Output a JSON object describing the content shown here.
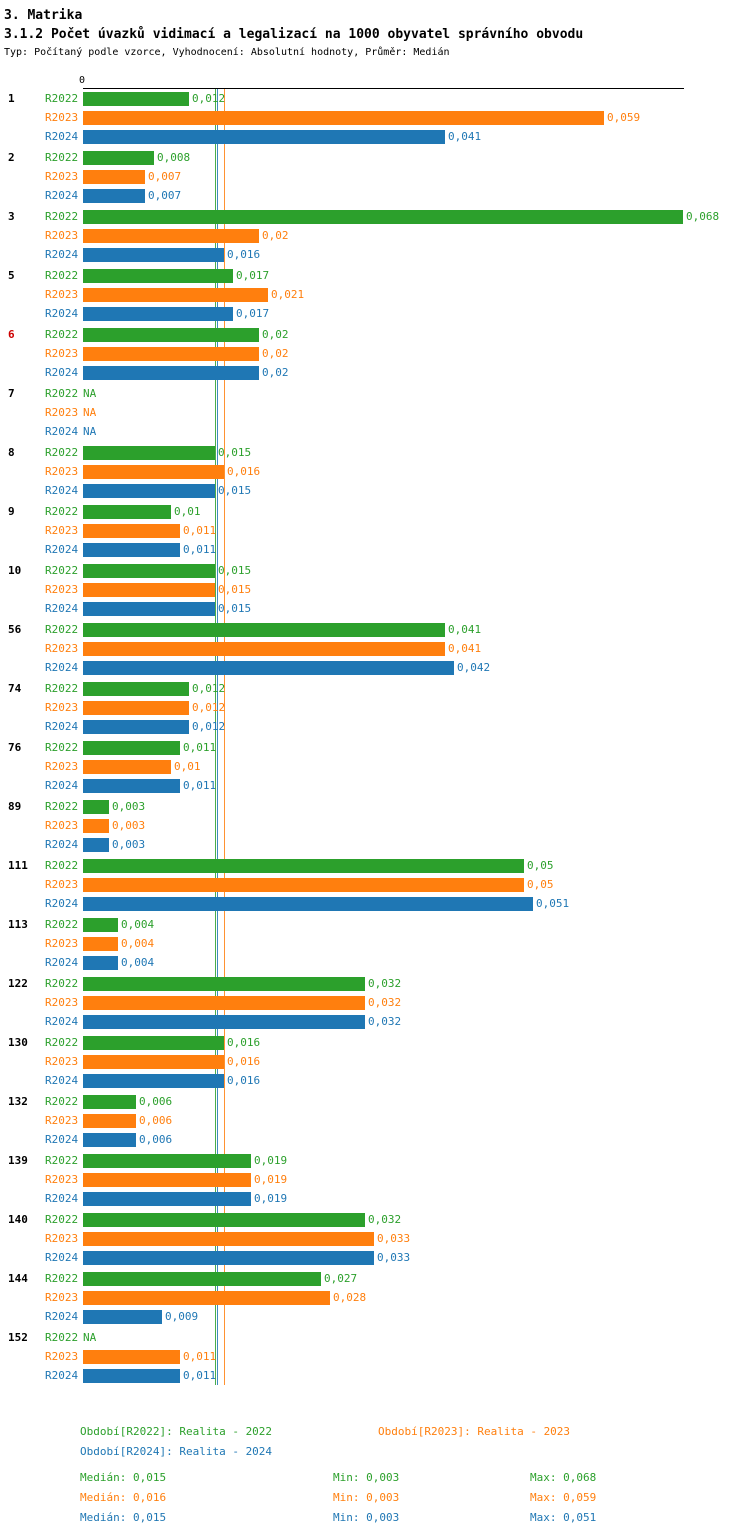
{
  "header": {
    "title": "3. Matrika",
    "subtitle": "3.1.2 Počet úvazků vidimací a legalizací na 1000 obyvatel správního obvodu",
    "meta": "Typ: Počítaný podle vzorce, Vyhodnocení: Absolutní hodnoty, Průměr: Medián"
  },
  "chart_data": {
    "type": "bar",
    "orientation": "horizontal",
    "title": "3.1.2 Počet úvazků vidimací a legalizací na 1000 obyvatel správního obvodu",
    "xlabel": "",
    "ylabel": "",
    "xlim": [
      0,
      0.068
    ],
    "zero_tick_label": "0",
    "categories": [
      "1",
      "2",
      "3",
      "5",
      "6",
      "7",
      "8",
      "9",
      "10",
      "56",
      "74",
      "76",
      "89",
      "111",
      "113",
      "122",
      "130",
      "132",
      "139",
      "140",
      "144",
      "152"
    ],
    "highlighted_category": "6",
    "highlight_color": "#cc0000",
    "na_label": "NA",
    "series": [
      {
        "name": "R2022",
        "color": "#2ca02c",
        "values": [
          0.012,
          0.008,
          0.068,
          0.017,
          0.02,
          null,
          0.015,
          0.01,
          0.015,
          0.041,
          0.012,
          0.011,
          0.003,
          0.05,
          0.004,
          0.032,
          0.016,
          0.006,
          0.019,
          0.032,
          0.027,
          null
        ],
        "labels": [
          "0,012",
          "0,008",
          "0,068",
          "0,017",
          "0,02",
          "NA",
          "0,015",
          "0,01",
          "0,015",
          "0,041",
          "0,012",
          "0,011",
          "0,003",
          "0,05",
          "0,004",
          "0,032",
          "0,016",
          "0,006",
          "0,019",
          "0,032",
          "0,027",
          "NA"
        ]
      },
      {
        "name": "R2023",
        "color": "#ff7f0e",
        "values": [
          0.059,
          0.007,
          0.02,
          0.021,
          0.02,
          null,
          0.016,
          0.011,
          0.015,
          0.041,
          0.012,
          0.01,
          0.003,
          0.05,
          0.004,
          0.032,
          0.016,
          0.006,
          0.019,
          0.033,
          0.028,
          0.011
        ],
        "labels": [
          "0,059",
          "0,007",
          "0,02",
          "0,021",
          "0,02",
          "NA",
          "0,016",
          "0,011",
          "0,015",
          "0,041",
          "0,012",
          "0,01",
          "0,003",
          "0,05",
          "0,004",
          "0,032",
          "0,016",
          "0,006",
          "0,019",
          "0,033",
          "0,028",
          "0,011"
        ]
      },
      {
        "name": "R2024",
        "color": "#1f77b4",
        "values": [
          0.041,
          0.007,
          0.016,
          0.017,
          0.02,
          null,
          0.015,
          0.011,
          0.015,
          0.042,
          0.012,
          0.011,
          0.003,
          0.051,
          0.004,
          0.032,
          0.016,
          0.006,
          0.019,
          0.033,
          0.009,
          0.011
        ],
        "labels": [
          "0,041",
          "0,007",
          "0,016",
          "0,017",
          "0,02",
          "NA",
          "0,015",
          "0,011",
          "0,015",
          "0,042",
          "0,012",
          "0,011",
          "0,003",
          "0,051",
          "0,004",
          "0,032",
          "0,016",
          "0,006",
          "0,019",
          "0,033",
          "0,009",
          "0,011"
        ]
      }
    ],
    "median_lines": [
      {
        "series": "R2022",
        "value": 0.015
      },
      {
        "series": "R2023",
        "value": 0.016
      },
      {
        "series": "R2024",
        "value": 0.015
      }
    ],
    "legend_position": "bottom",
    "grid": false
  },
  "legend": {
    "r2022": "Období[R2022]: Realita - 2022",
    "r2023": "Období[R2023]: Realita - 2023",
    "r2024": "Období[R2024]: Realita - 2024"
  },
  "stats": {
    "rows": [
      {
        "series": "R2022",
        "median": "Medián: 0,015",
        "min": "Min: 0,003",
        "max": "Max: 0,068"
      },
      {
        "series": "R2023",
        "median": "Medián: 0,016",
        "min": "Min: 0,003",
        "max": "Max: 0,059"
      },
      {
        "series": "R2024",
        "median": "Medián: 0,015",
        "min": "Min: 0,003",
        "max": "Max: 0,051"
      }
    ]
  }
}
